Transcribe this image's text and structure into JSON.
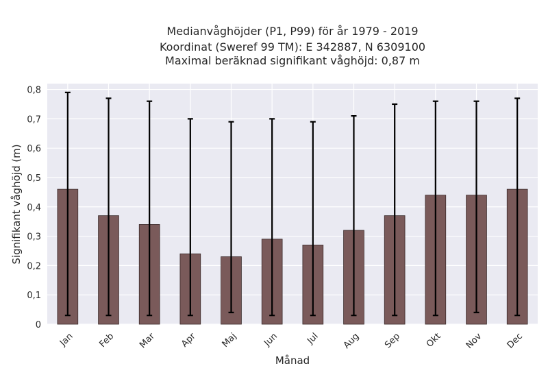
{
  "chart_data": {
    "type": "bar",
    "title_lines": [
      "Medianvåghöjder (P1, P99) för år 1979 - 2019",
      "Koordinat (Sweref 99 TM): E 342887, N 6309100",
      "Maximal beräknad signifikant våghöjd: 0,87 m"
    ],
    "xlabel": "Månad",
    "ylabel": "Signifikant våghöjd (m)",
    "categories": [
      "Jan",
      "Feb",
      "Mar",
      "Apr",
      "Maj",
      "Jun",
      "Jul",
      "Aug",
      "Sep",
      "Okt",
      "Nov",
      "Dec"
    ],
    "values": [
      0.46,
      0.37,
      0.34,
      0.24,
      0.23,
      0.29,
      0.27,
      0.32,
      0.37,
      0.44,
      0.44,
      0.46
    ],
    "error_low": [
      0.03,
      0.03,
      0.03,
      0.03,
      0.04,
      0.03,
      0.03,
      0.03,
      0.03,
      0.03,
      0.04,
      0.03
    ],
    "error_high": [
      0.79,
      0.77,
      0.76,
      0.7,
      0.69,
      0.7,
      0.69,
      0.71,
      0.75,
      0.76,
      0.76,
      0.77
    ],
    "ylim": [
      0,
      0.82
    ],
    "yticks": [
      "0",
      "0,1",
      "0,2",
      "0,3",
      "0,4",
      "0,5",
      "0,6",
      "0,7",
      "0,8"
    ],
    "ytick_values": [
      0,
      0.1,
      0.2,
      0.3,
      0.4,
      0.5,
      0.6,
      0.7,
      0.8
    ],
    "grid": true,
    "colors": {
      "bar": "#7a5a5a",
      "bar_edge": "#3a2a2a",
      "error": "#000000",
      "plot_bg": "#eaeaf2",
      "grid": "#ffffff"
    }
  }
}
